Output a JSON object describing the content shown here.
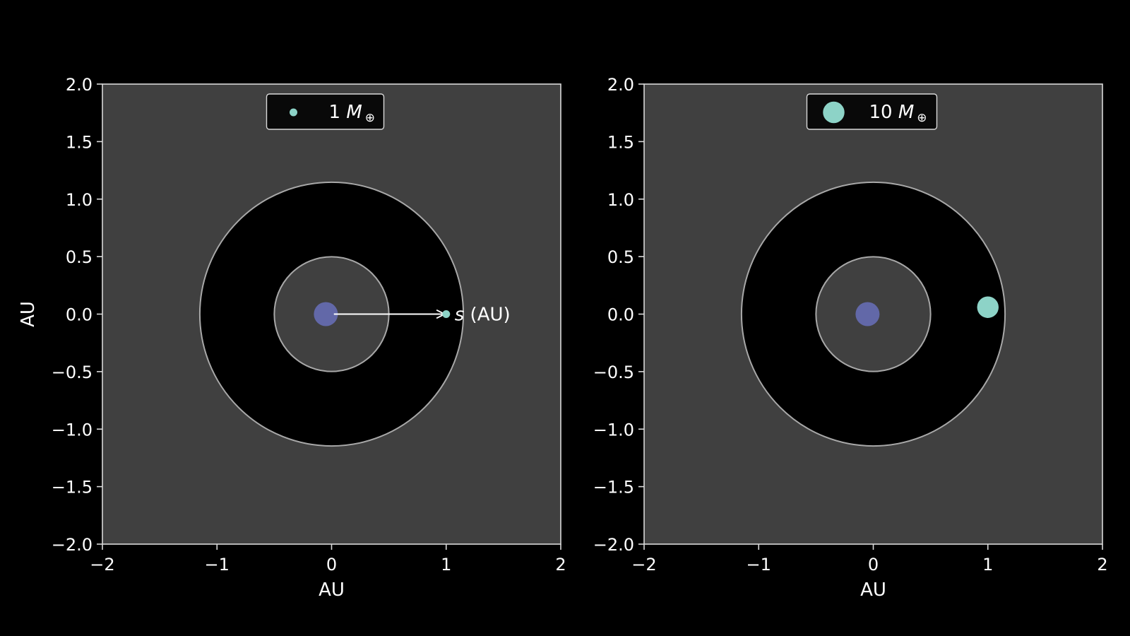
{
  "chart_data": [
    {
      "type": "scatter",
      "xlabel": "AU",
      "ylabel": "AU",
      "xlim": [
        -2,
        2
      ],
      "ylim": [
        -2,
        2
      ],
      "xticks": [
        -2,
        -1,
        0,
        1,
        2
      ],
      "yticks": [
        -2.0,
        -1.5,
        -1.0,
        -0.5,
        0.0,
        0.5,
        1.0,
        1.5,
        2.0
      ],
      "xtick_labels": [
        "−2",
        "−1",
        "0",
        "1",
        "2"
      ],
      "ytick_labels": [
        "−2.0",
        "−1.5",
        "−1.0",
        "−0.5",
        "0.0",
        "0.5",
        "1.0",
        "1.5",
        "2.0"
      ],
      "zones": [
        {
          "inner_radius": 0.5,
          "outer_radius": 1.15,
          "color": "#000000"
        }
      ],
      "star": {
        "x": -0.05,
        "y": 0.0,
        "color": "#6268a8"
      },
      "series": [
        {
          "name_value": "1",
          "name_unit": "M",
          "name_sub": "⊕",
          "x": [
            1.0
          ],
          "y": [
            0.0
          ],
          "mass": 1,
          "color": "#8dd3c7"
        }
      ],
      "annotations": [
        {
          "text_italic": "s",
          "text_rest": " (AU)",
          "arrow_from": [
            0.02,
            0.0
          ],
          "arrow_to": [
            1.0,
            0.0
          ]
        }
      ],
      "legend": "upper center",
      "grid": false,
      "background": "#404040"
    },
    {
      "type": "scatter",
      "xlabel": "AU",
      "ylabel": "",
      "xlim": [
        -2,
        2
      ],
      "ylim": [
        -2,
        2
      ],
      "xticks": [
        -2,
        -1,
        0,
        1,
        2
      ],
      "yticks": [
        -2.0,
        -1.5,
        -1.0,
        -0.5,
        0.0,
        0.5,
        1.0,
        1.5,
        2.0
      ],
      "xtick_labels": [
        "−2",
        "−1",
        "0",
        "1",
        "2"
      ],
      "ytick_labels": [
        "−2.0",
        "−1.5",
        "−1.0",
        "−0.5",
        "0.0",
        "0.5",
        "1.0",
        "1.5",
        "2.0"
      ],
      "zones": [
        {
          "inner_radius": 0.5,
          "outer_radius": 1.15,
          "color": "#000000"
        }
      ],
      "star": {
        "x": -0.05,
        "y": 0.0,
        "color": "#6268a8"
      },
      "series": [
        {
          "name_value": "10",
          "name_unit": "M",
          "name_sub": "⊕",
          "x": [
            1.0
          ],
          "y": [
            0.06
          ],
          "mass": 10,
          "color": "#8dd3c7"
        }
      ],
      "annotations": [],
      "legend": "upper center",
      "grid": false,
      "background": "#404040"
    }
  ],
  "colors": {
    "figure_bg": "#000000",
    "axes_bg": "#404040",
    "spine": "#d9d9d9",
    "orbit_line": "#a8a8a8",
    "text": "#ffffff"
  }
}
